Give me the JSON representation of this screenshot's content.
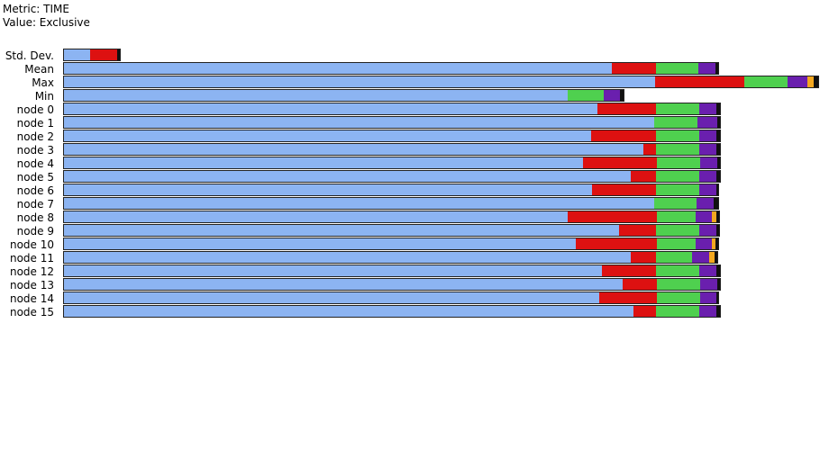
{
  "header": {
    "metric_line": "Metric: TIME",
    "value_line": "Value: Exclusive"
  },
  "colors": {
    "seg1": "#8cb4f2",
    "seg2": "#dd1111",
    "seg3": "#4fd04f",
    "seg4": "#6a1fae",
    "seg5": "#f4a820",
    "seg6": "#111111",
    "outline": "#222222"
  },
  "chart_data": {
    "type": "bar",
    "orientation": "horizontal",
    "stacked": true,
    "title": "",
    "xlabel": "",
    "ylabel": "",
    "grid": false,
    "legend": "none",
    "xlim": [
      0,
      841
    ],
    "categories": [
      "Std. Dev.",
      "Mean",
      "Max",
      "Min",
      "node 0",
      "node 1",
      "node 2",
      "node 3",
      "node 4",
      "node 5",
      "node 6",
      "node 7",
      "node 8",
      "node 9",
      "node 10",
      "node 11",
      "node 12",
      "node 13",
      "node 14",
      "node 15"
    ],
    "series": [
      {
        "color": "#8cb4f2",
        "values": [
          29,
          608,
          656,
          559,
          592,
          655,
          585,
          643,
          576,
          629,
          586,
          655,
          559,
          616,
          568,
          629,
          597,
          620,
          594,
          632
        ]
      },
      {
        "color": "#dd1111",
        "values": [
          30,
          49,
          99,
          0,
          65,
          0,
          72,
          14,
          82,
          28,
          71,
          0,
          99,
          41,
          90,
          28,
          60,
          38,
          64,
          25
        ]
      },
      {
        "color": "#4fd04f",
        "values": [
          0,
          47,
          48,
          40,
          48,
          48,
          48,
          48,
          48,
          48,
          48,
          47,
          43,
          48,
          43,
          40,
          48,
          48,
          48,
          48
        ]
      },
      {
        "color": "#6a1fae",
        "values": [
          0,
          19,
          22,
          18,
          19,
          22,
          19,
          19,
          19,
          19,
          19,
          19,
          18,
          19,
          18,
          19,
          19,
          19,
          18,
          19
        ]
      },
      {
        "color": "#f4a820",
        "values": [
          0,
          0,
          7,
          0,
          0,
          0,
          0,
          0,
          0,
          0,
          0,
          0,
          5,
          0,
          4,
          6,
          0,
          0,
          0,
          0
        ]
      },
      {
        "color": "#111111",
        "values": [
          3,
          3,
          5,
          4,
          4,
          3,
          4,
          4,
          3,
          4,
          2,
          5,
          3,
          3,
          3,
          3,
          4,
          3,
          2,
          4
        ]
      }
    ]
  }
}
